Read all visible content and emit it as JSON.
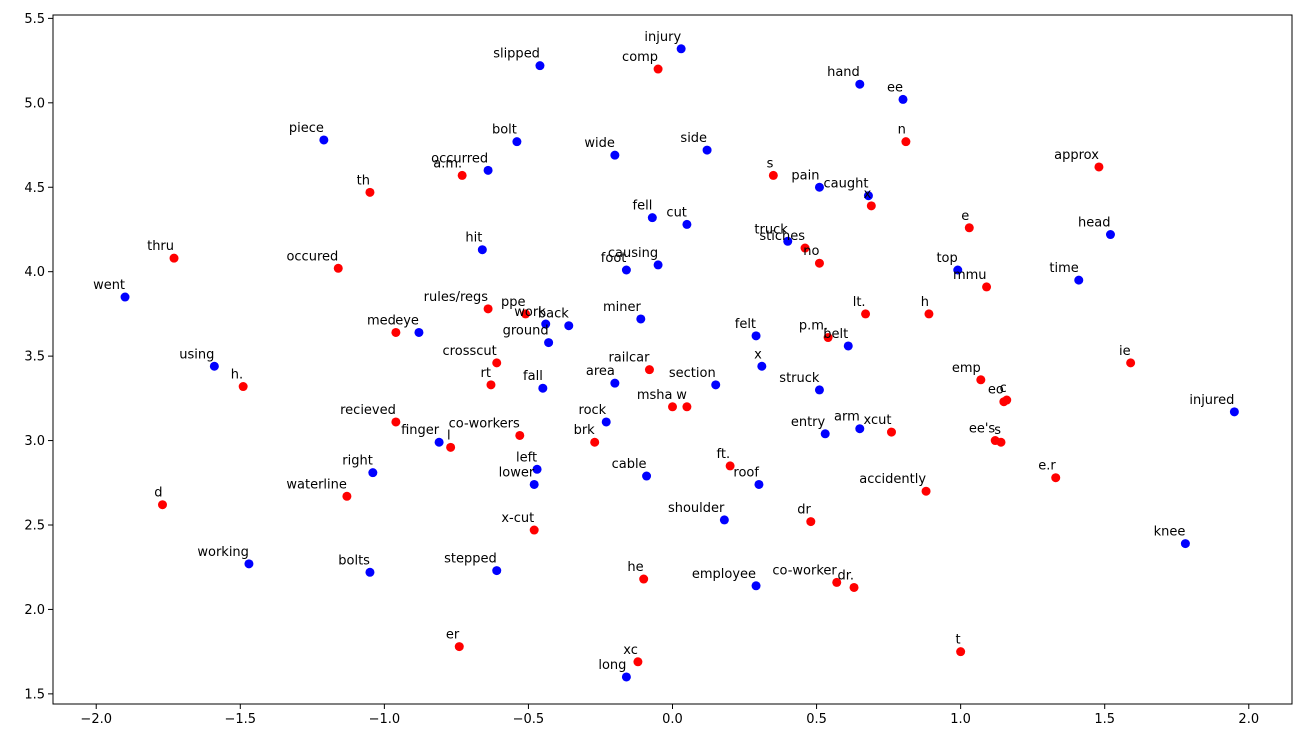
{
  "chart_data": {
    "type": "scatter",
    "title": "",
    "xlabel": "",
    "ylabel": "",
    "xlim": [
      -2.15,
      2.15
    ],
    "ylim": [
      1.44,
      5.52
    ],
    "x_ticks": [
      -2.0,
      -1.5,
      -1.0,
      -0.5,
      0.0,
      0.5,
      1.0,
      1.5,
      2.0
    ],
    "x_tick_labels": [
      "−2.0",
      "−1.5",
      "−1.0",
      "−0.5",
      "0.0",
      "0.5",
      "1.0",
      "1.5",
      "2.0"
    ],
    "y_ticks": [
      1.5,
      2.0,
      2.5,
      3.0,
      3.5,
      4.0,
      4.5,
      5.0,
      5.5
    ],
    "y_tick_labels": [
      "1.5",
      "2.0",
      "2.5",
      "3.0",
      "3.5",
      "4.0",
      "4.5",
      "5.0",
      "5.5"
    ],
    "grid": false,
    "legend": "none",
    "series": [
      {
        "color": "#0000ff",
        "points": [
          {
            "label": "injury",
            "x": 0.03,
            "y": 5.32
          },
          {
            "label": "slipped",
            "x": -0.46,
            "y": 5.22
          },
          {
            "label": "hand",
            "x": 0.65,
            "y": 5.11
          },
          {
            "label": "ee",
            "x": 0.8,
            "y": 5.02
          },
          {
            "label": "piece",
            "x": -1.21,
            "y": 4.78
          },
          {
            "label": "bolt",
            "x": -0.54,
            "y": 4.77
          },
          {
            "label": "wide",
            "x": -0.2,
            "y": 4.69
          },
          {
            "label": "side",
            "x": 0.12,
            "y": 4.72
          },
          {
            "label": "occurred",
            "x": -0.64,
            "y": 4.6
          },
          {
            "label": "pain",
            "x": 0.51,
            "y": 4.5
          },
          {
            "label": "caught",
            "x": 0.68,
            "y": 4.45
          },
          {
            "label": "fell",
            "x": -0.07,
            "y": 4.32
          },
          {
            "label": "cut",
            "x": 0.05,
            "y": 4.28
          },
          {
            "label": "head",
            "x": 1.52,
            "y": 4.22
          },
          {
            "label": "truck",
            "x": 0.4,
            "y": 4.18
          },
          {
            "label": "hit",
            "x": -0.66,
            "y": 4.13
          },
          {
            "label": "causing",
            "x": -0.05,
            "y": 4.04
          },
          {
            "label": "foot",
            "x": -0.16,
            "y": 4.01
          },
          {
            "label": "top",
            "x": 0.99,
            "y": 4.01
          },
          {
            "label": "time",
            "x": 1.41,
            "y": 3.95
          },
          {
            "label": "went",
            "x": -1.9,
            "y": 3.85
          },
          {
            "label": "miner",
            "x": -0.11,
            "y": 3.72
          },
          {
            "label": "work",
            "x": -0.44,
            "y": 3.69
          },
          {
            "label": "back",
            "x": -0.36,
            "y": 3.68
          },
          {
            "label": "eye",
            "x": -0.88,
            "y": 3.64
          },
          {
            "label": "felt",
            "x": 0.29,
            "y": 3.62
          },
          {
            "label": "ground",
            "x": -0.43,
            "y": 3.58
          },
          {
            "label": "belt",
            "x": 0.61,
            "y": 3.56
          },
          {
            "label": "using",
            "x": -1.59,
            "y": 3.44
          },
          {
            "label": "x",
            "x": 0.31,
            "y": 3.44
          },
          {
            "label": "area",
            "x": -0.2,
            "y": 3.34
          },
          {
            "label": "section",
            "x": 0.15,
            "y": 3.33
          },
          {
            "label": "fall",
            "x": -0.45,
            "y": 3.31
          },
          {
            "label": "struck",
            "x": 0.51,
            "y": 3.3
          },
          {
            "label": "injured",
            "x": 1.95,
            "y": 3.17
          },
          {
            "label": "rock",
            "x": -0.23,
            "y": 3.11
          },
          {
            "label": "arm",
            "x": 0.65,
            "y": 3.07
          },
          {
            "label": "entry",
            "x": 0.53,
            "y": 3.04
          },
          {
            "label": "finger",
            "x": -0.81,
            "y": 2.99
          },
          {
            "label": "right",
            "x": -1.04,
            "y": 2.81
          },
          {
            "label": "left",
            "x": -0.47,
            "y": 2.83
          },
          {
            "label": "cable",
            "x": -0.09,
            "y": 2.79
          },
          {
            "label": "lower",
            "x": -0.48,
            "y": 2.74
          },
          {
            "label": "roof",
            "x": 0.3,
            "y": 2.74
          },
          {
            "label": "shoulder",
            "x": 0.18,
            "y": 2.53
          },
          {
            "label": "knee",
            "x": 1.78,
            "y": 2.39
          },
          {
            "label": "working",
            "x": -1.47,
            "y": 2.27
          },
          {
            "label": "bolts",
            "x": -1.05,
            "y": 2.22
          },
          {
            "label": "stepped",
            "x": -0.61,
            "y": 2.23
          },
          {
            "label": "employee",
            "x": 0.29,
            "y": 2.14
          },
          {
            "label": "long",
            "x": -0.16,
            "y": 1.6
          }
        ]
      },
      {
        "color": "#ff0000",
        "points": [
          {
            "label": "comp",
            "x": -0.05,
            "y": 5.2
          },
          {
            "label": "n",
            "x": 0.81,
            "y": 4.77
          },
          {
            "label": "approx",
            "x": 1.48,
            "y": 4.62
          },
          {
            "label": "s",
            "x": 0.35,
            "y": 4.57
          },
          {
            "label": "a.m.",
            "x": -0.73,
            "y": 4.57
          },
          {
            "label": "th",
            "x": -1.05,
            "y": 4.47
          },
          {
            "label": "x",
            "x": 0.69,
            "y": 4.39
          },
          {
            "label": "e",
            "x": 1.03,
            "y": 4.26
          },
          {
            "label": "stiches",
            "x": 0.46,
            "y": 4.14
          },
          {
            "label": "thru",
            "x": -1.73,
            "y": 4.08
          },
          {
            "label": "no",
            "x": 0.51,
            "y": 4.05
          },
          {
            "label": "occured",
            "x": -1.16,
            "y": 4.02
          },
          {
            "label": "mmu",
            "x": 1.09,
            "y": 3.91
          },
          {
            "label": "rules/regs",
            "x": -0.64,
            "y": 3.78
          },
          {
            "label": "ppe",
            "x": -0.51,
            "y": 3.75
          },
          {
            "label": "lt.",
            "x": 0.67,
            "y": 3.75
          },
          {
            "label": "h",
            "x": 0.89,
            "y": 3.75
          },
          {
            "label": "med",
            "x": -0.96,
            "y": 3.64
          },
          {
            "label": "p.m.",
            "x": 0.54,
            "y": 3.61
          },
          {
            "label": "crosscut",
            "x": -0.61,
            "y": 3.46
          },
          {
            "label": "ie",
            "x": 1.59,
            "y": 3.46
          },
          {
            "label": "railcar",
            "x": -0.08,
            "y": 3.42
          },
          {
            "label": "emp",
            "x": 1.07,
            "y": 3.36
          },
          {
            "label": "h.",
            "x": -1.49,
            "y": 3.32
          },
          {
            "label": "rt",
            "x": -0.63,
            "y": 3.33
          },
          {
            "label": "eo",
            "x": 1.15,
            "y": 3.23
          },
          {
            "label": "c",
            "x": 1.16,
            "y": 3.24
          },
          {
            "label": "msha",
            "x": 0.0,
            "y": 3.2
          },
          {
            "label": "w",
            "x": 0.05,
            "y": 3.2
          },
          {
            "label": "recieved",
            "x": -0.96,
            "y": 3.11
          },
          {
            "label": "xcut",
            "x": 0.76,
            "y": 3.05
          },
          {
            "label": "co-workers",
            "x": -0.53,
            "y": 3.03
          },
          {
            "label": "ee's",
            "x": 1.12,
            "y": 3.0
          },
          {
            "label": "s",
            "x": 1.14,
            "y": 2.99
          },
          {
            "label": "brk",
            "x": -0.27,
            "y": 2.99
          },
          {
            "label": "l",
            "x": -0.77,
            "y": 2.96
          },
          {
            "label": "ft.",
            "x": 0.2,
            "y": 2.85
          },
          {
            "label": "e.r",
            "x": 1.33,
            "y": 2.78
          },
          {
            "label": "accidently",
            "x": 0.88,
            "y": 2.7
          },
          {
            "label": "waterline",
            "x": -1.13,
            "y": 2.67
          },
          {
            "label": "d",
            "x": -1.77,
            "y": 2.62
          },
          {
            "label": "dr",
            "x": 0.48,
            "y": 2.52
          },
          {
            "label": "x-cut",
            "x": -0.48,
            "y": 2.47
          },
          {
            "label": "he",
            "x": -0.1,
            "y": 2.18
          },
          {
            "label": "co-worker",
            "x": 0.57,
            "y": 2.16
          },
          {
            "label": "dr.",
            "x": 0.63,
            "y": 2.13
          },
          {
            "label": "er",
            "x": -0.74,
            "y": 1.78
          },
          {
            "label": "t",
            "x": 1.0,
            "y": 1.75
          },
          {
            "label": "xc",
            "x": -0.12,
            "y": 1.69
          }
        ]
      }
    ]
  }
}
